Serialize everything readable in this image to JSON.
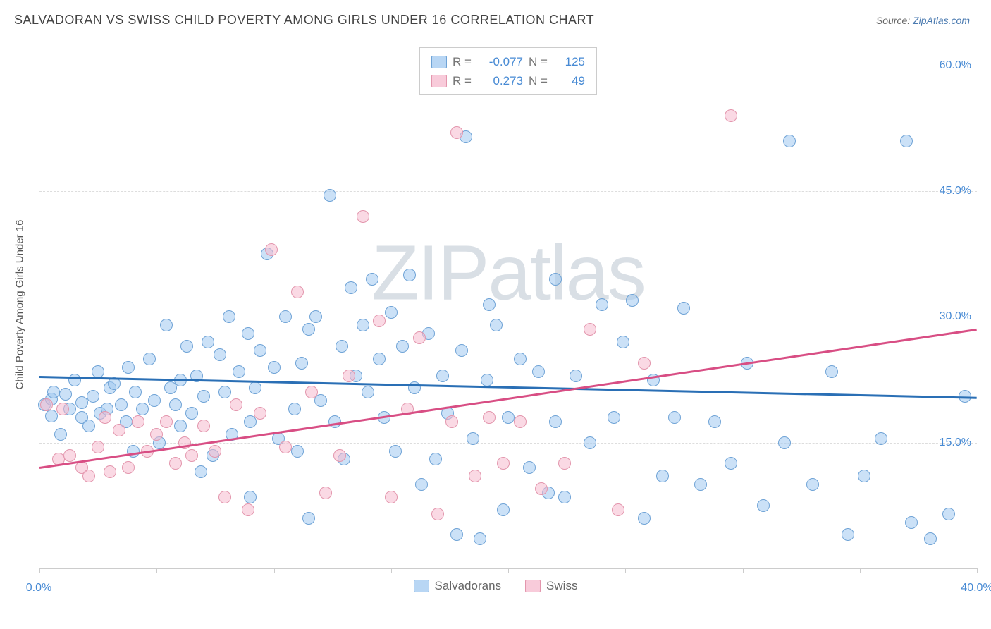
{
  "title": "SALVADORAN VS SWISS CHILD POVERTY AMONG GIRLS UNDER 16 CORRELATION CHART",
  "source_prefix": "Source: ",
  "source_link": "ZipAtlas.com",
  "y_label": "Child Poverty Among Girls Under 16",
  "watermark": {
    "part1": "ZIP",
    "part2": "atlas"
  },
  "chart": {
    "type": "scatter",
    "xlim": [
      0,
      40
    ],
    "ylim": [
      0,
      63
    ],
    "background_color": "#ffffff",
    "grid_color": "#dddddd",
    "axis_color": "#cccccc",
    "ytick_values": [
      15,
      30,
      45,
      60
    ],
    "ytick_labels": [
      "15.0%",
      "30.0%",
      "45.0%",
      "60.0%"
    ],
    "xtick_values": [
      0,
      5,
      10,
      15,
      20,
      25,
      30,
      35,
      40
    ],
    "xtick_labels": [
      "0.0%",
      "40.0%"
    ],
    "xtick_label_at": [
      0,
      40
    ]
  },
  "series": [
    {
      "name": "Salvadorans",
      "fill": "rgba(160,200,240,0.55)",
      "stroke": "#6fa3d6",
      "trend_color": "#2a6fb5",
      "marker_radius": 9,
      "R": "-0.077",
      "N": "125",
      "trend": {
        "x1": 0,
        "y1": 22.8,
        "x2": 40,
        "y2": 20.3
      },
      "points": [
        [
          0.2,
          19.5
        ],
        [
          0.5,
          20.2
        ],
        [
          0.5,
          18.2
        ],
        [
          0.6,
          21.0
        ],
        [
          0.9,
          16.0
        ],
        [
          1.1,
          20.8
        ],
        [
          1.3,
          19.0
        ],
        [
          1.5,
          22.5
        ],
        [
          1.8,
          18.0
        ],
        [
          1.8,
          19.8
        ],
        [
          2.1,
          17.0
        ],
        [
          2.3,
          20.5
        ],
        [
          2.5,
          23.5
        ],
        [
          2.6,
          18.5
        ],
        [
          2.9,
          19.0
        ],
        [
          3.0,
          21.5
        ],
        [
          3.2,
          22.0
        ],
        [
          3.5,
          19.5
        ],
        [
          3.7,
          17.5
        ],
        [
          3.8,
          24.0
        ],
        [
          4.0,
          14.0
        ],
        [
          4.1,
          21.0
        ],
        [
          4.4,
          19.0
        ],
        [
          4.7,
          25.0
        ],
        [
          4.9,
          20.0
        ],
        [
          5.1,
          15.0
        ],
        [
          5.4,
          29.0
        ],
        [
          5.6,
          21.5
        ],
        [
          5.8,
          19.5
        ],
        [
          6.0,
          22.5
        ],
        [
          6.0,
          17.0
        ],
        [
          6.3,
          26.5
        ],
        [
          6.5,
          18.5
        ],
        [
          6.7,
          23.0
        ],
        [
          7.0,
          20.5
        ],
        [
          7.2,
          27.0
        ],
        [
          7.4,
          13.5
        ],
        [
          7.7,
          25.5
        ],
        [
          7.9,
          21.0
        ],
        [
          8.1,
          30.0
        ],
        [
          8.2,
          16.0
        ],
        [
          8.5,
          23.5
        ],
        [
          8.9,
          28.0
        ],
        [
          9.0,
          17.5
        ],
        [
          9.2,
          21.5
        ],
        [
          9.4,
          26.0
        ],
        [
          9.7,
          37.5
        ],
        [
          10.0,
          24.0
        ],
        [
          10.2,
          15.5
        ],
        [
          10.5,
          30.0
        ],
        [
          10.9,
          19.0
        ],
        [
          11.0,
          14.0
        ],
        [
          11.2,
          24.5
        ],
        [
          11.5,
          28.5
        ],
        [
          11.8,
          30.0
        ],
        [
          12.0,
          20.0
        ],
        [
          12.4,
          44.5
        ],
        [
          12.6,
          17.5
        ],
        [
          12.9,
          26.5
        ],
        [
          13.0,
          13.0
        ],
        [
          13.3,
          33.5
        ],
        [
          13.5,
          23.0
        ],
        [
          13.8,
          29.0
        ],
        [
          14.0,
          21.0
        ],
        [
          14.2,
          34.5
        ],
        [
          14.5,
          25.0
        ],
        [
          14.7,
          18.0
        ],
        [
          15.0,
          30.5
        ],
        [
          15.2,
          14.0
        ],
        [
          15.5,
          26.5
        ],
        [
          15.8,
          35.0
        ],
        [
          16.0,
          21.5
        ],
        [
          16.3,
          10.0
        ],
        [
          16.6,
          28.0
        ],
        [
          16.9,
          13.0
        ],
        [
          17.2,
          23.0
        ],
        [
          17.4,
          18.5
        ],
        [
          17.8,
          4.0
        ],
        [
          18.0,
          26.0
        ],
        [
          18.2,
          51.5
        ],
        [
          18.5,
          15.5
        ],
        [
          18.8,
          3.5
        ],
        [
          19.1,
          22.5
        ],
        [
          19.5,
          29.0
        ],
        [
          19.8,
          7.0
        ],
        [
          20.0,
          18.0
        ],
        [
          20.5,
          25.0
        ],
        [
          20.9,
          12.0
        ],
        [
          21.3,
          23.5
        ],
        [
          21.7,
          9.0
        ],
        [
          22.0,
          17.5
        ],
        [
          22.4,
          8.5
        ],
        [
          22.9,
          23.0
        ],
        [
          23.5,
          15.0
        ],
        [
          24.0,
          31.5
        ],
        [
          24.5,
          18.0
        ],
        [
          24.9,
          27.0
        ],
        [
          25.3,
          32.0
        ],
        [
          25.8,
          6.0
        ],
        [
          26.2,
          22.5
        ],
        [
          26.6,
          11.0
        ],
        [
          27.1,
          18.0
        ],
        [
          27.5,
          31.0
        ],
        [
          28.2,
          10.0
        ],
        [
          28.8,
          17.5
        ],
        [
          29.5,
          12.5
        ],
        [
          30.2,
          24.5
        ],
        [
          30.9,
          7.5
        ],
        [
          31.8,
          15.0
        ],
        [
          32.0,
          51.0
        ],
        [
          33.0,
          10.0
        ],
        [
          33.8,
          23.5
        ],
        [
          34.5,
          4.0
        ],
        [
          35.2,
          11.0
        ],
        [
          35.9,
          15.5
        ],
        [
          37.0,
          51.0
        ],
        [
          37.2,
          5.5
        ],
        [
          38.0,
          3.5
        ],
        [
          38.8,
          6.5
        ],
        [
          39.5,
          20.5
        ],
        [
          6.9,
          11.5
        ],
        [
          9.0,
          8.5
        ],
        [
          11.5,
          6.0
        ],
        [
          19.2,
          31.5
        ],
        [
          22.0,
          34.5
        ]
      ]
    },
    {
      "name": "Swiss",
      "fill": "rgba(245,185,205,0.55)",
      "stroke": "#e396ad",
      "trend_color": "#d84e84",
      "marker_radius": 9,
      "R": "0.273",
      "N": "49",
      "trend": {
        "x1": 0,
        "y1": 12.0,
        "x2": 40,
        "y2": 28.5
      },
      "points": [
        [
          0.3,
          19.5
        ],
        [
          0.8,
          13.0
        ],
        [
          1.0,
          19.0
        ],
        [
          1.3,
          13.5
        ],
        [
          1.8,
          12.0
        ],
        [
          2.1,
          11.0
        ],
        [
          2.5,
          14.5
        ],
        [
          2.8,
          18.0
        ],
        [
          3.0,
          11.5
        ],
        [
          3.4,
          16.5
        ],
        [
          3.8,
          12.0
        ],
        [
          4.2,
          17.5
        ],
        [
          4.6,
          14.0
        ],
        [
          5.0,
          16.0
        ],
        [
          5.4,
          17.5
        ],
        [
          5.8,
          12.5
        ],
        [
          6.2,
          15.0
        ],
        [
          6.5,
          13.5
        ],
        [
          7.0,
          17.0
        ],
        [
          7.5,
          14.0
        ],
        [
          7.9,
          8.5
        ],
        [
          8.4,
          19.5
        ],
        [
          8.9,
          7.0
        ],
        [
          9.4,
          18.5
        ],
        [
          9.9,
          38.0
        ],
        [
          10.5,
          14.5
        ],
        [
          11.0,
          33.0
        ],
        [
          11.6,
          21.0
        ],
        [
          12.2,
          9.0
        ],
        [
          12.8,
          13.5
        ],
        [
          13.2,
          23.0
        ],
        [
          13.8,
          42.0
        ],
        [
          14.5,
          29.5
        ],
        [
          15.0,
          8.5
        ],
        [
          15.7,
          19.0
        ],
        [
          16.2,
          27.5
        ],
        [
          17.0,
          6.5
        ],
        [
          17.6,
          17.5
        ],
        [
          17.8,
          52.0
        ],
        [
          18.6,
          11.0
        ],
        [
          19.2,
          18.0
        ],
        [
          19.8,
          12.5
        ],
        [
          20.5,
          17.5
        ],
        [
          21.4,
          9.5
        ],
        [
          22.4,
          12.5
        ],
        [
          23.5,
          28.5
        ],
        [
          24.7,
          7.0
        ],
        [
          25.8,
          24.5
        ],
        [
          29.5,
          54.0
        ]
      ]
    }
  ],
  "legend": {
    "stats": [
      {
        "swatch_fill": "rgba(160,200,240,0.75)",
        "swatch_stroke": "#6fa3d6",
        "R_label": "R =",
        "R": "-0.077",
        "N_label": "N =",
        "N": "125"
      },
      {
        "swatch_fill": "rgba(245,185,205,0.75)",
        "swatch_stroke": "#e396ad",
        "R_label": "R =",
        "R": "0.273",
        "N_label": "N =",
        "N": "49"
      }
    ]
  }
}
